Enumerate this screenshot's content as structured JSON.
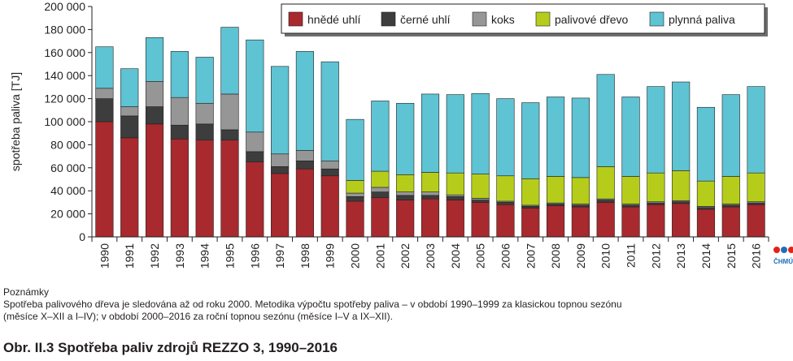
{
  "chart_data": {
    "type": "bar",
    "stacked": true,
    "ylabel": "spotřeba paliva [TJ]",
    "ylim": [
      0,
      200000
    ],
    "yticks": [
      0,
      20000,
      40000,
      60000,
      80000,
      100000,
      120000,
      140000,
      160000,
      180000,
      200000
    ],
    "ytick_labels": [
      "0",
      "20 000",
      "40 000",
      "60 000",
      "80 000",
      "100 000",
      "120 000",
      "140 000",
      "160 000",
      "180 000",
      "200 000"
    ],
    "grid": false,
    "legend_position": "top-right",
    "categories": [
      "1990",
      "1991",
      "1992",
      "1993",
      "1994",
      "1995",
      "1996",
      "1997",
      "1998",
      "1999",
      "2000",
      "2001",
      "2002",
      "2003",
      "2004",
      "2005",
      "2006",
      "2007",
      "2008",
      "2009",
      "2010",
      "2011",
      "2012",
      "2013",
      "2014",
      "2015",
      "2016"
    ],
    "series": [
      {
        "name": "hnědé uhlí",
        "color": "#a82a2e",
        "values": [
          100000,
          86000,
          98000,
          85000,
          84000,
          84000,
          65000,
          55000,
          59000,
          53000,
          31000,
          34000,
          32000,
          33000,
          32000,
          30000,
          28000,
          25000,
          27000,
          26000,
          30000,
          26000,
          28000,
          29000,
          24000,
          26000,
          28000
        ]
      },
      {
        "name": "černé uhlí",
        "color": "#3d3d3d",
        "values": [
          20000,
          19000,
          15000,
          12000,
          14000,
          9000,
          9000,
          6000,
          7000,
          6000,
          4000,
          5000,
          4000,
          3000,
          3000,
          2000,
          2000,
          1500,
          1500,
          1500,
          2000,
          1500,
          1500,
          1500,
          1500,
          1500,
          1500
        ]
      },
      {
        "name": "koks",
        "color": "#969696",
        "values": [
          9000,
          8000,
          22000,
          24000,
          18000,
          31000,
          17000,
          11000,
          9000,
          7000,
          3000,
          4000,
          3000,
          3000,
          1500,
          1500,
          1000,
          1000,
          1000,
          1000,
          1000,
          1000,
          1000,
          1000,
          1000,
          1000,
          1000
        ]
      },
      {
        "name": "palivové dřevo",
        "color": "#b5cd1a",
        "values": [
          0,
          0,
          0,
          0,
          0,
          0,
          0,
          0,
          0,
          0,
          11000,
          14000,
          15000,
          17000,
          19000,
          21000,
          22000,
          23000,
          23000,
          23000,
          28000,
          24000,
          25000,
          26000,
          22000,
          24000,
          25000
        ]
      },
      {
        "name": "plynná paliva",
        "color": "#5ec3d3",
        "values": [
          36000,
          33000,
          38000,
          40000,
          40000,
          58000,
          80000,
          76000,
          86000,
          86000,
          53000,
          61000,
          62000,
          68000,
          68000,
          70000,
          67000,
          66000,
          69000,
          69000,
          80000,
          69000,
          75000,
          77000,
          64000,
          71000,
          75000
        ]
      }
    ]
  },
  "notes": {
    "heading": "Poznámky",
    "line1": "Spotřeba palivového dřeva je sledována až od roku 2000. Metodika výpočtu spotřeby paliva – v období 1990–1999 za klasickou topnou sezónu",
    "line2": "(měsíce X–XII a I–IV); v období 2000–2016 za roční topnou sezónu (měsíce I–V a IX–XII)."
  },
  "figure_title": "Obr. II.3  Spotřeba paliv zdrojů REZZO 3, 1990–2016",
  "logo": {
    "text": "ČHMÚ",
    "dot_colors": [
      "#e2231a",
      "#1d6fb8"
    ]
  }
}
